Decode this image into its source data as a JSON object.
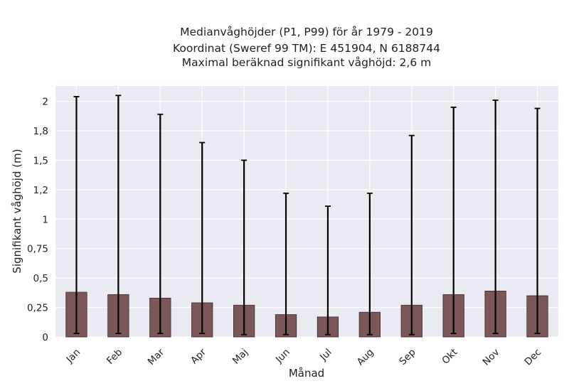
{
  "chart_data": {
    "type": "bar",
    "title_lines": [
      "Medianvåghöjder (P1, P99) för år 1979 - 2019",
      "Koordinat (Sweref 99 TM): E 451904, N 6188744",
      "Maximal beräknad signifikant våghöjd: 2,6 m"
    ],
    "xlabel": "Månad",
    "ylabel": "Signifikant våghöjd (m)",
    "categories": [
      "Jan",
      "Feb",
      "Mar",
      "Apr",
      "Maj",
      "Jun",
      "Jul",
      "Aug",
      "Sep",
      "Okt",
      "Nov",
      "Dec"
    ],
    "series": [
      {
        "values": [
          0.38,
          0.36,
          0.33,
          0.29,
          0.27,
          0.19,
          0.17,
          0.21,
          0.27,
          0.36,
          0.39,
          0.35
        ],
        "error_low": [
          0.03,
          0.03,
          0.03,
          0.03,
          0.02,
          0.02,
          0.02,
          0.02,
          0.02,
          0.03,
          0.03,
          0.03
        ],
        "error_high": [
          2.04,
          2.05,
          1.89,
          1.65,
          1.5,
          1.22,
          1.11,
          1.22,
          1.71,
          1.95,
          2.01,
          1.94
        ]
      }
    ],
    "ylim": [
      0,
      2.13
    ],
    "yticks": [
      0,
      0.25,
      0.5,
      0.75,
      1,
      1.25,
      1.5,
      1.75,
      2
    ],
    "ytick_labels": [
      "0",
      "0,25",
      "0,5",
      "0,75",
      "1",
      "1,2",
      "1,5",
      "1,8",
      "2"
    ],
    "grid": true,
    "colors": {
      "bar": "#7b5759",
      "background": "#eaeaf2",
      "grid": "#ffffff",
      "error": "#000000"
    }
  }
}
